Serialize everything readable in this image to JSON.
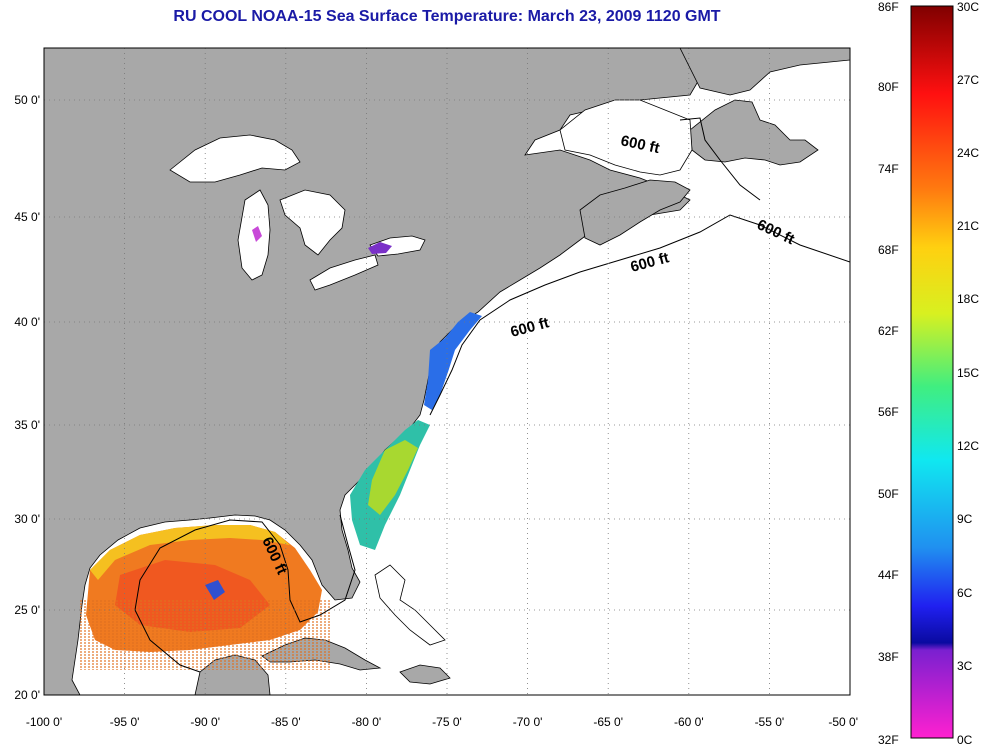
{
  "title": "RU COOL  NOAA-15  Sea Surface Temperature:  March 23, 2009 1120 GMT",
  "x_ticks": [
    "-100 0'",
    "-95 0'",
    "-90 0'",
    "-85 0'",
    "-80 0'",
    "-75 0'",
    "-70 0'",
    "-65 0'",
    "-60 0'",
    "-55 0'",
    "-50 0'"
  ],
  "y_ticks": [
    "50 0'",
    "45 0'",
    "40 0'",
    "35 0'",
    "30 0'",
    "25 0'",
    "20 0'"
  ],
  "contour_label": "600 ft",
  "colorbar": {
    "fahrenheit": [
      "86F",
      "80F",
      "74F",
      "68F",
      "62F",
      "56F",
      "50F",
      "44F",
      "38F",
      "32F"
    ],
    "celsius": [
      "30C",
      "27C",
      "24C",
      "21C",
      "18C",
      "15C",
      "12C",
      "9C",
      "6C",
      "3C",
      "0C"
    ]
  },
  "colors": {
    "land": "#a8a8a8",
    "ocean_no_data": "#ffffff",
    "title": "#1a1aa6"
  }
}
